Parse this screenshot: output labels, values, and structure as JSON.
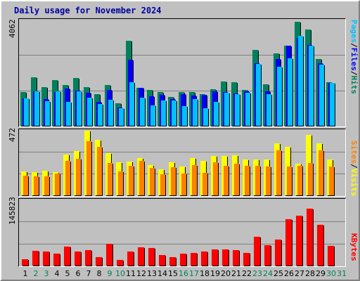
{
  "title": "Daily usage for November 2024",
  "colors": {
    "hits": "#00805c",
    "files": "#0000ff",
    "pages": "#00c0ff",
    "visits": "#ffff00",
    "sites": "#ff8000",
    "kbytes": "#ff0000",
    "weekday": "#000000",
    "weekend": "#00805c",
    "title": "#0000a0"
  },
  "chart_data": [
    {
      "type": "bar",
      "title": "Daily usage for November 2024",
      "ylabel_max": "4062",
      "legend": [
        "Pages",
        "Files",
        "Hits"
      ],
      "categories": [
        "1",
        "2",
        "3",
        "4",
        "5",
        "6",
        "7",
        "8",
        "9",
        "10",
        "11",
        "12",
        "13",
        "14",
        "15",
        "16",
        "17",
        "18",
        "19",
        "20",
        "21",
        "22",
        "23",
        "24",
        "25",
        "26",
        "27",
        "28",
        "29",
        "30",
        "31"
      ],
      "ylim": [
        0,
        4062
      ],
      "series": [
        {
          "name": "Hits",
          "values": [
            1290,
            1880,
            1480,
            1750,
            1570,
            1850,
            1500,
            1220,
            1580,
            880,
            3270,
            1450,
            1380,
            1290,
            1110,
            1290,
            1300,
            1230,
            1400,
            1700,
            1680,
            1370,
            2930,
            1610,
            2790,
            3080,
            4010,
            3700,
            2580,
            1670,
            0
          ]
        },
        {
          "name": "Files",
          "values": [
            1050,
            1340,
            1020,
            1300,
            1440,
            1360,
            1260,
            910,
            1380,
            710,
            2550,
            1470,
            1150,
            1180,
            1020,
            1210,
            1160,
            1180,
            1340,
            1300,
            1250,
            1330,
            2400,
            1340,
            2560,
            3100,
            3390,
            3120,
            2400,
            1640,
            0
          ]
        },
        {
          "name": "Pages",
          "values": [
            1050,
            1340,
            960,
            1330,
            920,
            1340,
            1070,
            850,
            1000,
            670,
            1690,
            1090,
            780,
            980,
            980,
            770,
            1040,
            690,
            930,
            1270,
            1220,
            1260,
            2390,
            1210,
            2280,
            2590,
            3460,
            3090,
            2360,
            1640,
            0
          ]
        }
      ]
    },
    {
      "type": "bar",
      "ylabel_max": "472",
      "legend": [
        "Sites",
        "Visits"
      ],
      "categories": [
        "1",
        "2",
        "3",
        "4",
        "5",
        "6",
        "7",
        "8",
        "9",
        "10",
        "11",
        "12",
        "13",
        "14",
        "15",
        "16",
        "17",
        "18",
        "19",
        "20",
        "21",
        "22",
        "23",
        "24",
        "25",
        "26",
        "27",
        "28",
        "29",
        "30",
        "31"
      ],
      "ylim": [
        0,
        472
      ],
      "series": [
        {
          "name": "Visits",
          "values": [
            173,
            167,
            182,
            167,
            296,
            323,
            472,
            403,
            308,
            239,
            247,
            274,
            221,
            191,
            239,
            208,
            270,
            252,
            288,
            288,
            294,
            264,
            264,
            264,
            378,
            353,
            231,
            441,
            378,
            260,
            0
          ]
        },
        {
          "name": "Sites",
          "values": [
            142,
            141,
            141,
            160,
            249,
            269,
            396,
            356,
            237,
            175,
            218,
            252,
            199,
            156,
            205,
            157,
            221,
            163,
            241,
            213,
            231,
            214,
            214,
            210,
            328,
            210,
            216,
            235,
            330,
            211,
            0
          ]
        }
      ]
    },
    {
      "type": "bar",
      "ylabel_max": "145823",
      "legend": [
        "KBytes"
      ],
      "categories": [
        "1",
        "2",
        "3",
        "4",
        "5",
        "6",
        "7",
        "8",
        "9",
        "10",
        "11",
        "12",
        "13",
        "14",
        "15",
        "16",
        "17",
        "18",
        "19",
        "20",
        "21",
        "22",
        "23",
        "24",
        "25",
        "26",
        "27",
        "28",
        "29",
        "30",
        "31"
      ],
      "ylim": [
        0,
        145823
      ],
      "series": [
        {
          "name": "KBytes",
          "values": [
            14700,
            33000,
            31000,
            26500,
            42500,
            31000,
            34000,
            19500,
            48000,
            13000,
            32000,
            41000,
            39500,
            23000,
            18500,
            27000,
            28000,
            31000,
            35500,
            36000,
            34000,
            29000,
            64000,
            45500,
            58000,
            104000,
            112000,
            127000,
            91000,
            43500,
            0
          ]
        }
      ]
    }
  ]
}
